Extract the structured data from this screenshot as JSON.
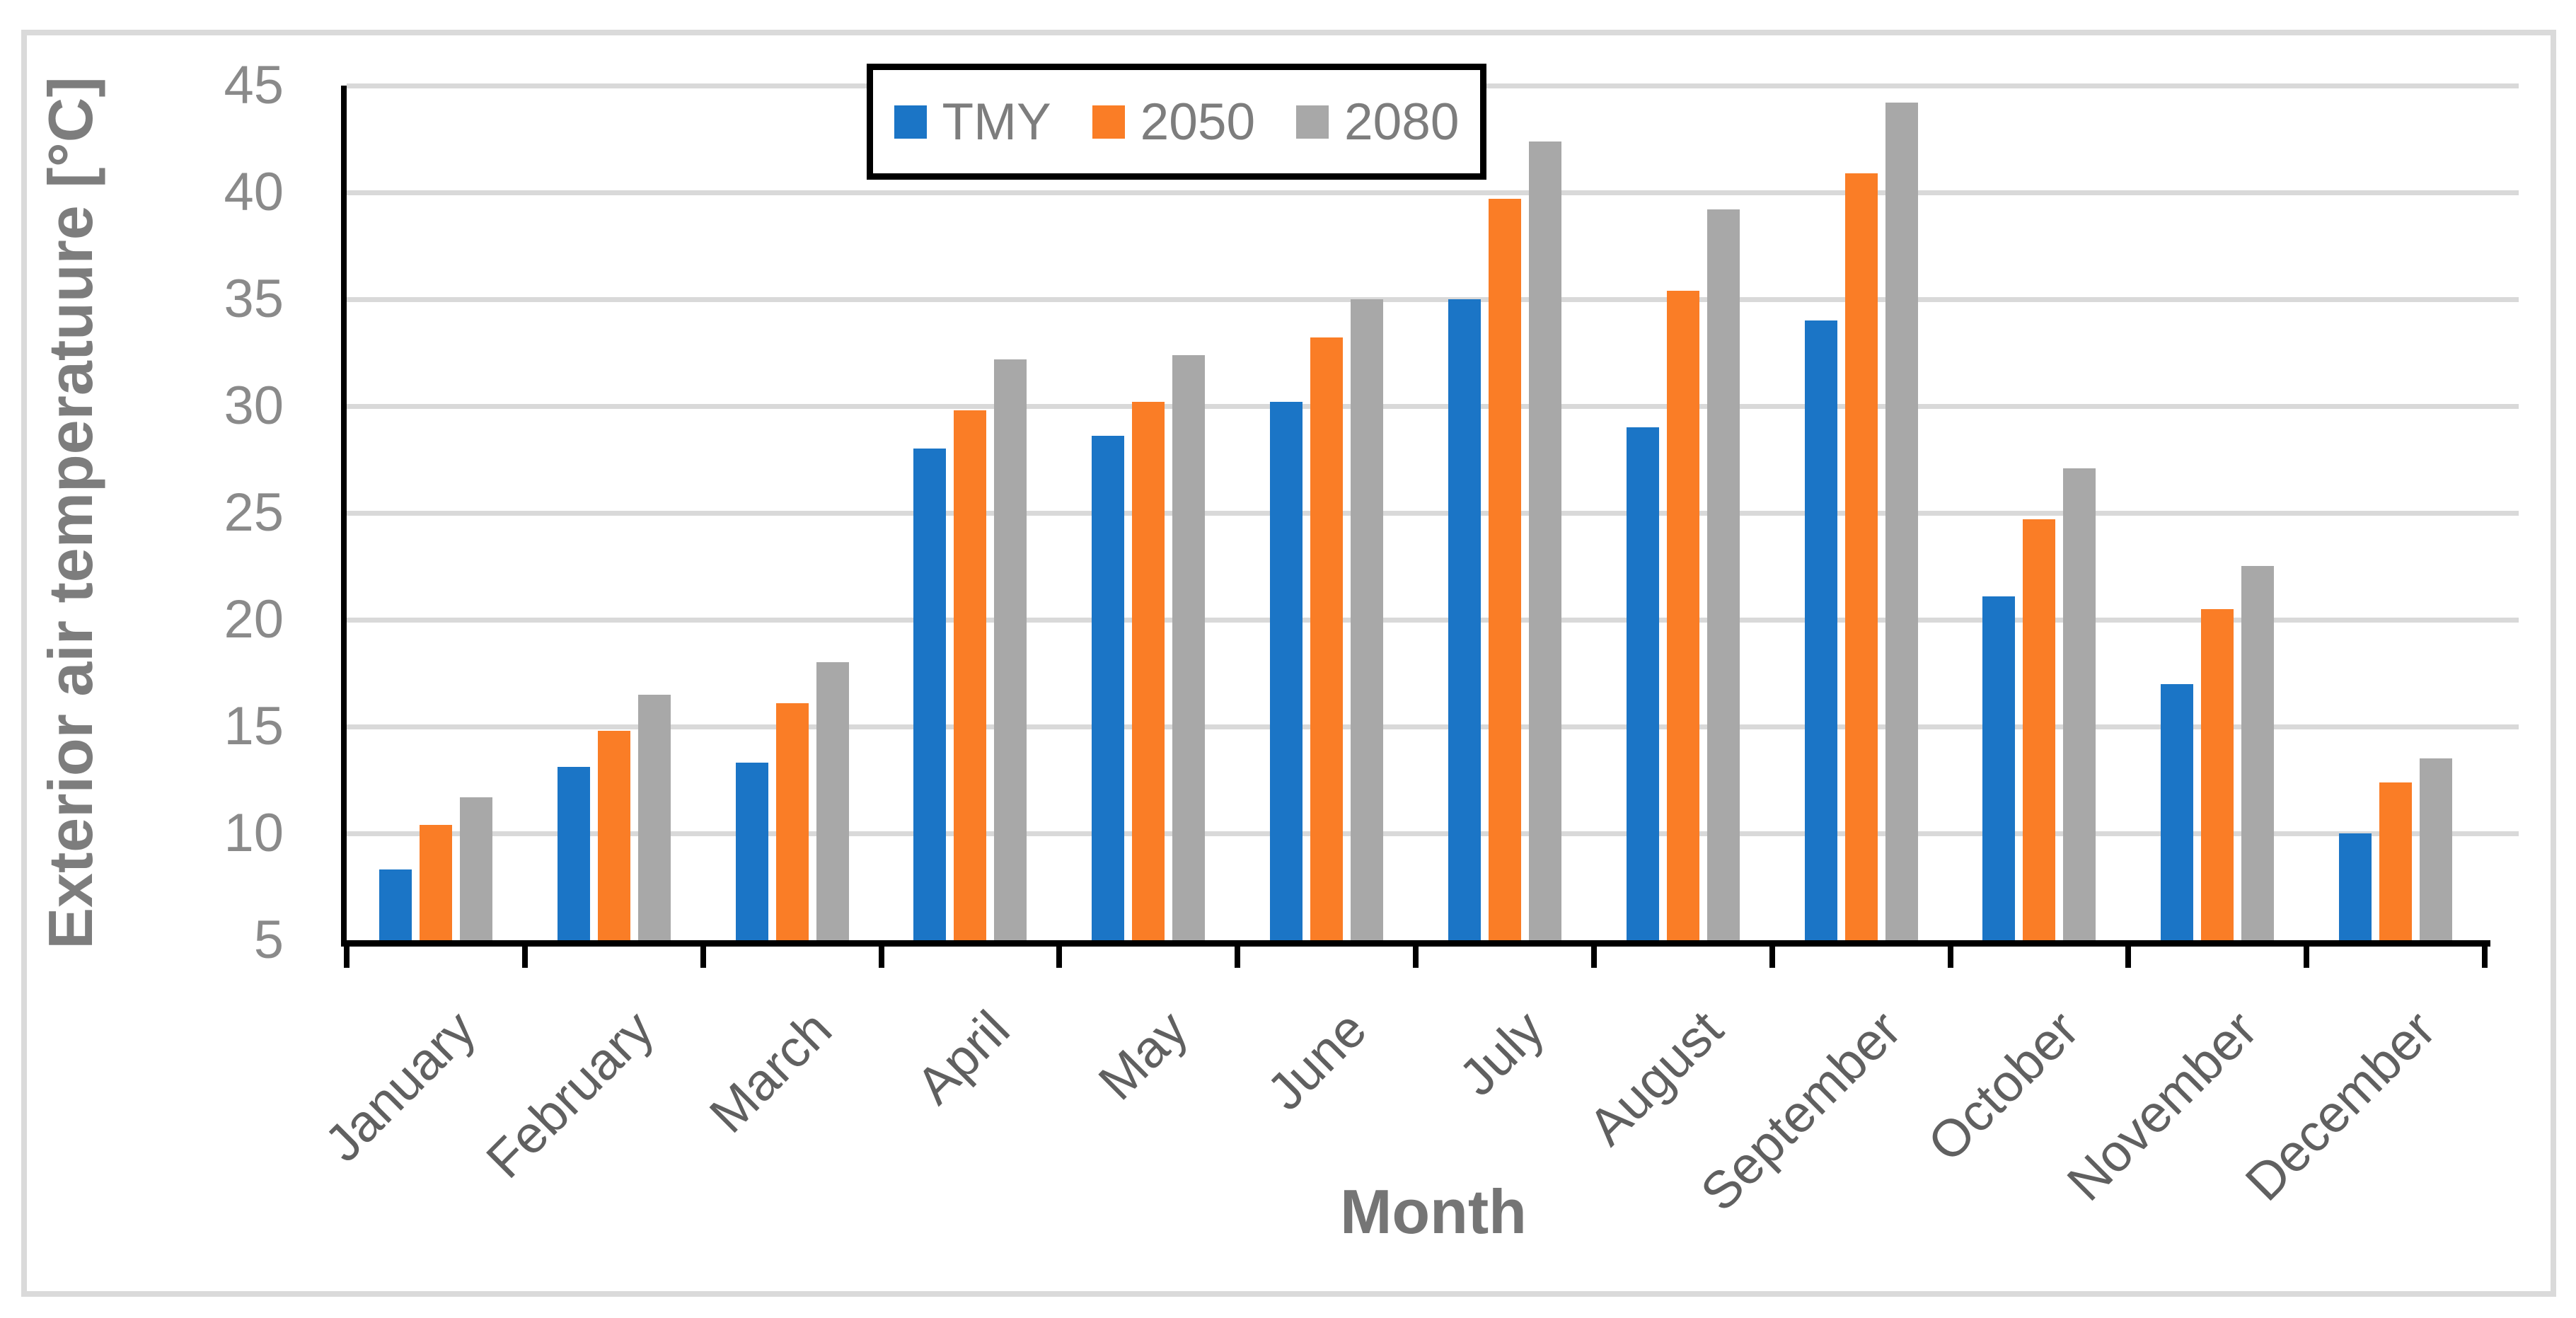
{
  "chart_data": {
    "type": "bar",
    "title": "",
    "xlabel": "Month",
    "ylabel": "Exterior air temperatuure [°C]",
    "categories": [
      "January",
      "February",
      "March",
      "April",
      "May",
      "June",
      "July",
      "August",
      "September",
      "October",
      "November",
      "December"
    ],
    "series": [
      {
        "name": "TMY",
        "color": "#1B75C6",
        "values": [
          8.3,
          13.1,
          13.3,
          28.0,
          28.6,
          30.2,
          35.0,
          29.0,
          34.0,
          21.1,
          17.0,
          10.0
        ]
      },
      {
        "name": "2050",
        "color": "#FA7D26",
        "values": [
          10.4,
          14.8,
          16.1,
          29.8,
          30.2,
          33.2,
          39.7,
          35.4,
          40.9,
          24.7,
          20.5,
          12.4
        ]
      },
      {
        "name": "2080",
        "color": "#A8A8A8",
        "values": [
          11.7,
          16.5,
          18.0,
          32.2,
          32.4,
          35.0,
          42.4,
          39.2,
          44.2,
          27.1,
          22.5,
          13.5
        ]
      }
    ],
    "ylim": [
      5,
      45
    ],
    "ytick_step": 5,
    "yticks": [
      5,
      10,
      15,
      20,
      25,
      30,
      35,
      40,
      45
    ],
    "grid": true,
    "legend_position": "top-center",
    "colors": {
      "gridline": "#D9D9D9",
      "axis": "#000000",
      "tick_text": "#8A8A8A",
      "category_text": "#606060",
      "title_text": "#757575",
      "frame": "#DADADA"
    }
  }
}
